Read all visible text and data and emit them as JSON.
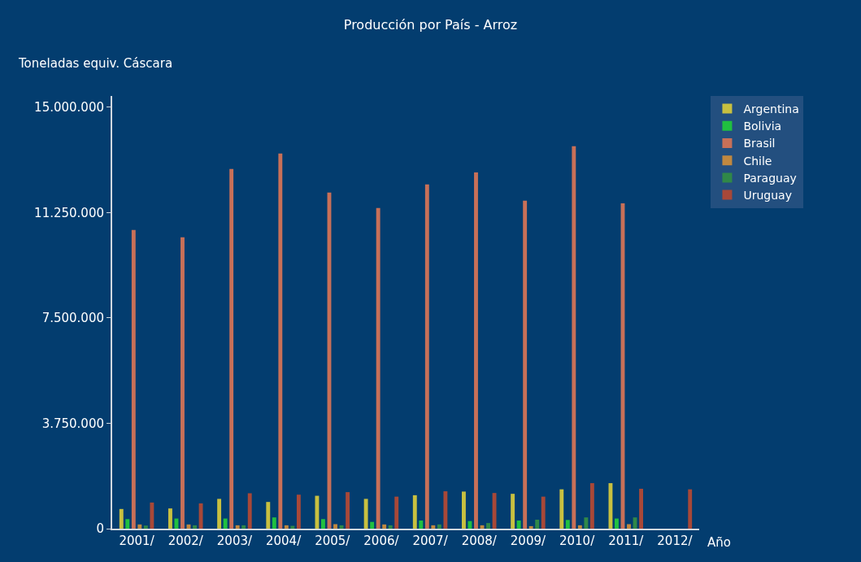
{
  "chart_data": {
    "type": "bar",
    "title": "Producción por País - Arroz",
    "ylabel": "Toneladas equiv. Cáscara",
    "xlabel": "Año",
    "categories": [
      "2001/",
      "2002/",
      "2003/",
      "2004/",
      "2005/",
      "2006/",
      "2007/",
      "2008/",
      "2009/",
      "2010/",
      "2011/",
      "2012/"
    ],
    "series": [
      {
        "name": "Argentina",
        "color": "#c8c040",
        "values": [
          700000,
          720000,
          1060000,
          950000,
          1170000,
          1060000,
          1190000,
          1320000,
          1240000,
          1400000,
          1620000,
          null
        ]
      },
      {
        "name": "Bolivia",
        "color": "#20c040",
        "values": [
          340000,
          360000,
          360000,
          400000,
          340000,
          240000,
          290000,
          270000,
          290000,
          310000,
          360000,
          null
        ]
      },
      {
        "name": "Brasil",
        "color": "#c87058",
        "values": [
          10630000,
          10370000,
          12800000,
          13350000,
          11960000,
          11410000,
          12250000,
          12680000,
          11670000,
          13610000,
          11580000,
          null
        ]
      },
      {
        "name": "Chile",
        "color": "#c08840",
        "values": [
          150000,
          150000,
          120000,
          120000,
          160000,
          150000,
          120000,
          120000,
          90000,
          120000,
          160000,
          null
        ]
      },
      {
        "name": "Paraguay",
        "color": "#308848",
        "values": [
          110000,
          120000,
          120000,
          100000,
          120000,
          120000,
          150000,
          200000,
          320000,
          400000,
          400000,
          null
        ]
      },
      {
        "name": "Uruguay",
        "color": "#a84838",
        "values": [
          930000,
          900000,
          1260000,
          1210000,
          1300000,
          1140000,
          1330000,
          1270000,
          1140000,
          1620000,
          1420000,
          1400000
        ]
      }
    ],
    "ylim": [
      0,
      15400000
    ],
    "yticks": [
      0,
      {
        "value": 3750000,
        "label": "3.750.000"
      },
      {
        "value": 7500000,
        "label": "7.500.000"
      },
      {
        "value": 11250000,
        "label": "11.250.000"
      },
      {
        "value": 15000000,
        "label": "15.000.000"
      }
    ],
    "grid": false,
    "legend": "top right"
  }
}
